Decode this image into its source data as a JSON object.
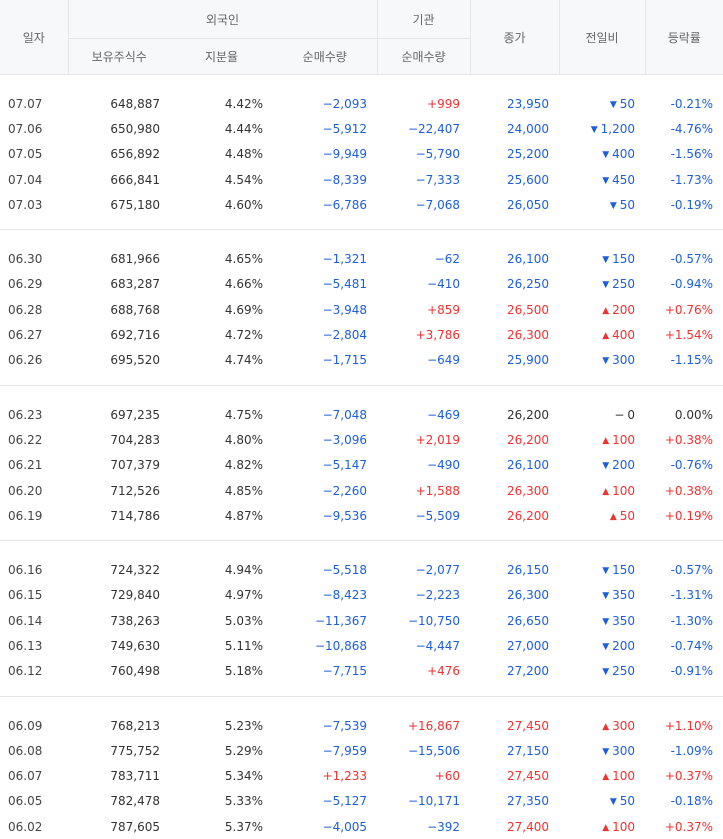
{
  "header": {
    "date": "일자",
    "foreign": "외국인",
    "institution": "기관",
    "close": "종가",
    "change": "전일비",
    "rate": "등락률",
    "holdings": "보유주식수",
    "ratio": "지분율",
    "foreign_net": "순매수량",
    "inst_net": "순매수량"
  },
  "colors": {
    "up": "#ee3333",
    "down": "#1d5fd8",
    "flat": "#333333"
  },
  "groups": [
    [
      {
        "date": "07.07",
        "hold": "648,887",
        "ratio": "4.42%",
        "fnet": "−2,093",
        "inet": "+999",
        "close": "23,950",
        "dir": "down",
        "chg": "50",
        "rate": "-0.21%"
      },
      {
        "date": "07.06",
        "hold": "650,980",
        "ratio": "4.44%",
        "fnet": "−5,912",
        "inet": "−22,407",
        "close": "24,000",
        "dir": "down",
        "chg": "1,200",
        "rate": "-4.76%"
      },
      {
        "date": "07.05",
        "hold": "656,892",
        "ratio": "4.48%",
        "fnet": "−9,949",
        "inet": "−5,790",
        "close": "25,200",
        "dir": "down",
        "chg": "400",
        "rate": "-1.56%"
      },
      {
        "date": "07.04",
        "hold": "666,841",
        "ratio": "4.54%",
        "fnet": "−8,339",
        "inet": "−7,333",
        "close": "25,600",
        "dir": "down",
        "chg": "450",
        "rate": "-1.73%"
      },
      {
        "date": "07.03",
        "hold": "675,180",
        "ratio": "4.60%",
        "fnet": "−6,786",
        "inet": "−7,068",
        "close": "26,050",
        "dir": "down",
        "chg": "50",
        "rate": "-0.19%"
      }
    ],
    [
      {
        "date": "06.30",
        "hold": "681,966",
        "ratio": "4.65%",
        "fnet": "−1,321",
        "inet": "−62",
        "close": "26,100",
        "dir": "down",
        "chg": "150",
        "rate": "-0.57%"
      },
      {
        "date": "06.29",
        "hold": "683,287",
        "ratio": "4.66%",
        "fnet": "−5,481",
        "inet": "−410",
        "close": "26,250",
        "dir": "down",
        "chg": "250",
        "rate": "-0.94%"
      },
      {
        "date": "06.28",
        "hold": "688,768",
        "ratio": "4.69%",
        "fnet": "−3,948",
        "inet": "+859",
        "close": "26,500",
        "dir": "up",
        "chg": "200",
        "rate": "+0.76%"
      },
      {
        "date": "06.27",
        "hold": "692,716",
        "ratio": "4.72%",
        "fnet": "−2,804",
        "inet": "+3,786",
        "close": "26,300",
        "dir": "up",
        "chg": "400",
        "rate": "+1.54%"
      },
      {
        "date": "06.26",
        "hold": "695,520",
        "ratio": "4.74%",
        "fnet": "−1,715",
        "inet": "−649",
        "close": "25,900",
        "dir": "down",
        "chg": "300",
        "rate": "-1.15%"
      }
    ],
    [
      {
        "date": "06.23",
        "hold": "697,235",
        "ratio": "4.75%",
        "fnet": "−7,048",
        "inet": "−469",
        "close": "26,200",
        "dir": "flat",
        "chg": "0",
        "rate": "0.00%"
      },
      {
        "date": "06.22",
        "hold": "704,283",
        "ratio": "4.80%",
        "fnet": "−3,096",
        "inet": "+2,019",
        "close": "26,200",
        "dir": "up",
        "chg": "100",
        "rate": "+0.38%"
      },
      {
        "date": "06.21",
        "hold": "707,379",
        "ratio": "4.82%",
        "fnet": "−5,147",
        "inet": "−490",
        "close": "26,100",
        "dir": "down",
        "chg": "200",
        "rate": "-0.76%"
      },
      {
        "date": "06.20",
        "hold": "712,526",
        "ratio": "4.85%",
        "fnet": "−2,260",
        "inet": "+1,588",
        "close": "26,300",
        "dir": "up",
        "chg": "100",
        "rate": "+0.38%"
      },
      {
        "date": "06.19",
        "hold": "714,786",
        "ratio": "4.87%",
        "fnet": "−9,536",
        "inet": "−5,509",
        "close": "26,200",
        "dir": "up",
        "chg": "50",
        "rate": "+0.19%"
      }
    ],
    [
      {
        "date": "06.16",
        "hold": "724,322",
        "ratio": "4.94%",
        "fnet": "−5,518",
        "inet": "−2,077",
        "close": "26,150",
        "dir": "down",
        "chg": "150",
        "rate": "-0.57%"
      },
      {
        "date": "06.15",
        "hold": "729,840",
        "ratio": "4.97%",
        "fnet": "−8,423",
        "inet": "−2,223",
        "close": "26,300",
        "dir": "down",
        "chg": "350",
        "rate": "-1.31%"
      },
      {
        "date": "06.14",
        "hold": "738,263",
        "ratio": "5.03%",
        "fnet": "−11,367",
        "inet": "−10,750",
        "close": "26,650",
        "dir": "down",
        "chg": "350",
        "rate": "-1.30%"
      },
      {
        "date": "06.13",
        "hold": "749,630",
        "ratio": "5.11%",
        "fnet": "−10,868",
        "inet": "−4,447",
        "close": "27,000",
        "dir": "down",
        "chg": "200",
        "rate": "-0.74%"
      },
      {
        "date": "06.12",
        "hold": "760,498",
        "ratio": "5.18%",
        "fnet": "−7,715",
        "inet": "+476",
        "close": "27,200",
        "dir": "down",
        "chg": "250",
        "rate": "-0.91%"
      }
    ],
    [
      {
        "date": "06.09",
        "hold": "768,213",
        "ratio": "5.23%",
        "fnet": "−7,539",
        "inet": "+16,867",
        "close": "27,450",
        "dir": "up",
        "chg": "300",
        "rate": "+1.10%"
      },
      {
        "date": "06.08",
        "hold": "775,752",
        "ratio": "5.29%",
        "fnet": "−7,959",
        "inet": "−15,506",
        "close": "27,150",
        "dir": "down",
        "chg": "300",
        "rate": "-1.09%"
      },
      {
        "date": "06.07",
        "hold": "783,711",
        "ratio": "5.34%",
        "fnet": "+1,233",
        "inet": "+60",
        "close": "27,450",
        "dir": "up",
        "chg": "100",
        "rate": "+0.37%"
      },
      {
        "date": "06.05",
        "hold": "782,478",
        "ratio": "5.33%",
        "fnet": "−5,127",
        "inet": "−10,171",
        "close": "27,350",
        "dir": "down",
        "chg": "50",
        "rate": "-0.18%"
      },
      {
        "date": "06.02",
        "hold": "787,605",
        "ratio": "5.37%",
        "fnet": "−4,005",
        "inet": "−392",
        "close": "27,400",
        "dir": "up",
        "chg": "100",
        "rate": "+0.37%"
      }
    ]
  ]
}
